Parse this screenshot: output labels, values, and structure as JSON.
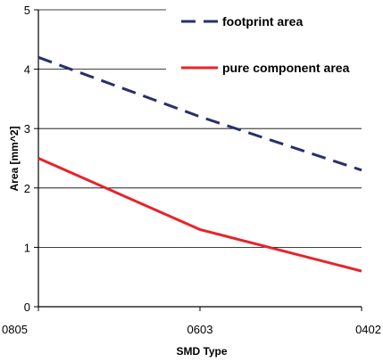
{
  "chart_data": {
    "type": "line",
    "categories": [
      "0805",
      "0603",
      "0402"
    ],
    "xlabel": "SMD Type",
    "ylabel": "Area [mm^2]",
    "ylim": [
      0,
      5
    ],
    "yticks": [
      "0",
      "1",
      "2",
      "3",
      "4",
      "5"
    ],
    "grid": true,
    "legend_position": "top-right",
    "series": [
      {
        "name": "footprint area",
        "values": [
          4.2,
          3.2,
          2.3
        ],
        "color": "#2a2f6b",
        "style": "dashed"
      },
      {
        "name": "pure component area",
        "values": [
          2.5,
          1.3,
          0.6
        ],
        "color": "#e8232a",
        "style": "solid"
      }
    ]
  }
}
